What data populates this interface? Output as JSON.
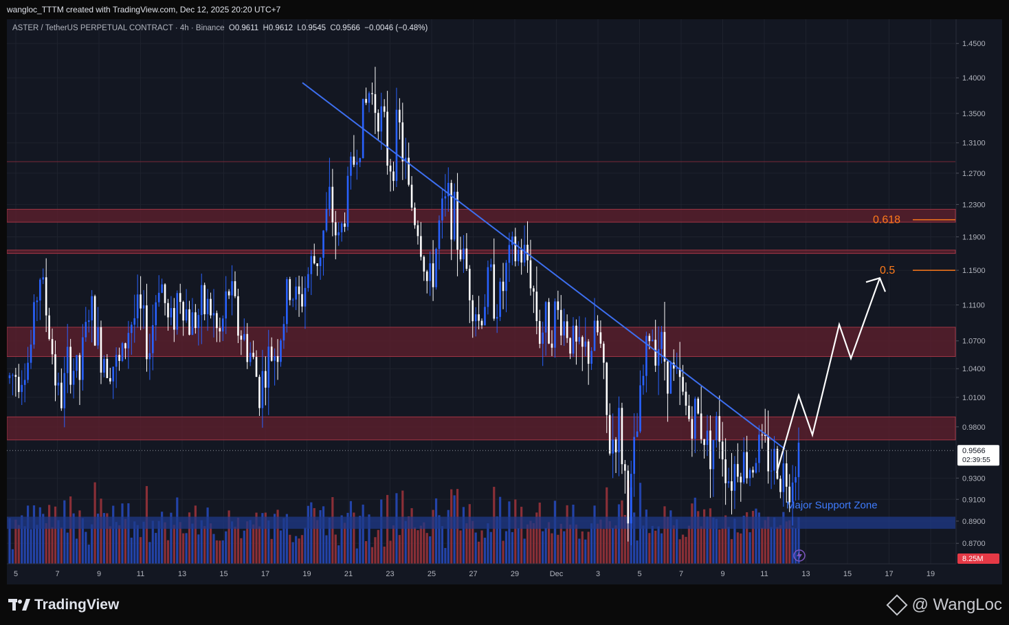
{
  "top_caption": "wangloc_TTTM created with TradingView.com, Dec 12, 2025 20:20 UTC+7",
  "header": {
    "symbol": "ASTER / TetherUS PERPETUAL CONTRACT · 4h · Binance",
    "o_label": "O",
    "o": "0.9611",
    "h_label": "H",
    "h": "0.9612",
    "l_label": "L",
    "l": "0.9545",
    "c_label": "C",
    "c": "0.9566",
    "change": "−0.0046 (−0.48%)"
  },
  "footer": {
    "brand": "TradingView",
    "watermark": "@ WangLoc"
  },
  "colors": {
    "background": "#131722",
    "up": "#2962ff",
    "down": "#ffffff",
    "vol_up": "#2343a8",
    "vol_down": "#8a2f37",
    "zone": "#5c1f2d",
    "zone_border": "#a33545",
    "support": "#1f3a8a",
    "trendline": "#3d6ff0",
    "fib": "#ff7a1a",
    "projection": "#ffffff"
  },
  "chart_data": {
    "type": "candlestick",
    "title": "ASTER / TetherUS PERPETUAL CONTRACT · 4h · Binance",
    "x_axis": {
      "ticks": [
        "5",
        "7",
        "9",
        "11",
        "13",
        "15",
        "17",
        "19",
        "21",
        "23",
        "25",
        "27",
        "29",
        "Dec",
        "3",
        "5",
        "7",
        "9",
        "11",
        "13",
        "15",
        "17",
        "19"
      ]
    },
    "y_axis": {
      "scale": "log",
      "ticks": [
        "1.4500",
        "1.4000",
        "1.3500",
        "1.3100",
        "1.2700",
        "1.2300",
        "1.1900",
        "1.1500",
        "1.1100",
        "1.0700",
        "1.0400",
        "1.0100",
        "0.9800",
        "0.9300",
        "0.9100",
        "0.8900",
        "0.8700"
      ],
      "range": [
        0.852,
        1.478
      ]
    },
    "last_price": {
      "value": "0.9566",
      "countdown": "02:39:55"
    },
    "volume_label": "8.25M",
    "resistance_zones": [
      {
        "low": 1.208,
        "high": 1.224
      },
      {
        "low": 1.17,
        "high": 1.174
      },
      {
        "low": 1.053,
        "high": 1.085
      },
      {
        "low": 0.967,
        "high": 0.99
      }
    ],
    "resistance_line": 1.285,
    "support_zone": {
      "low": 0.883,
      "high": 0.894,
      "label": "Major Support Zone"
    },
    "fib_levels": [
      {
        "label": "0.618",
        "value": 1.211
      },
      {
        "label": "0.5",
        "value": 1.15
      }
    ],
    "trendline": [
      {
        "date": "Nov 19",
        "price": 1.393
      },
      {
        "date": "Dec 12",
        "price": 0.958
      }
    ],
    "projection_path": [
      0.935,
      1.012,
      0.972,
      1.088,
      1.051,
      1.141
    ],
    "price_path": [
      1.03,
      1.04,
      1.05,
      1.15,
      1.08,
      1.0,
      1.05,
      1.03,
      1.11,
      1.06,
      1.05,
      1.04,
      1.09,
      1.1,
      1.06,
      1.15,
      1.08,
      1.13,
      1.09,
      1.1,
      1.11,
      1.07,
      1.13,
      1.08,
      1.06,
      1.02,
      1.05,
      1.07,
      1.13,
      1.11,
      1.15,
      1.17,
      1.23,
      1.18,
      1.26,
      1.32,
      1.38,
      1.36,
      1.28,
      1.33,
      1.24,
      1.2,
      1.12,
      1.2,
      1.24,
      1.18,
      1.14,
      1.09,
      1.14,
      1.11,
      1.16,
      1.17,
      1.16,
      1.08,
      1.09,
      1.1,
      1.08,
      1.05,
      1.06,
      1.08,
      0.96,
      0.98,
      0.9,
      0.99,
      1.08,
      1.07,
      1.04,
      1.02,
      0.99,
      0.99,
      0.96,
      0.98,
      0.93,
      0.95,
      0.94,
      0.96,
      0.95,
      0.94,
      0.93,
      0.957
    ]
  }
}
